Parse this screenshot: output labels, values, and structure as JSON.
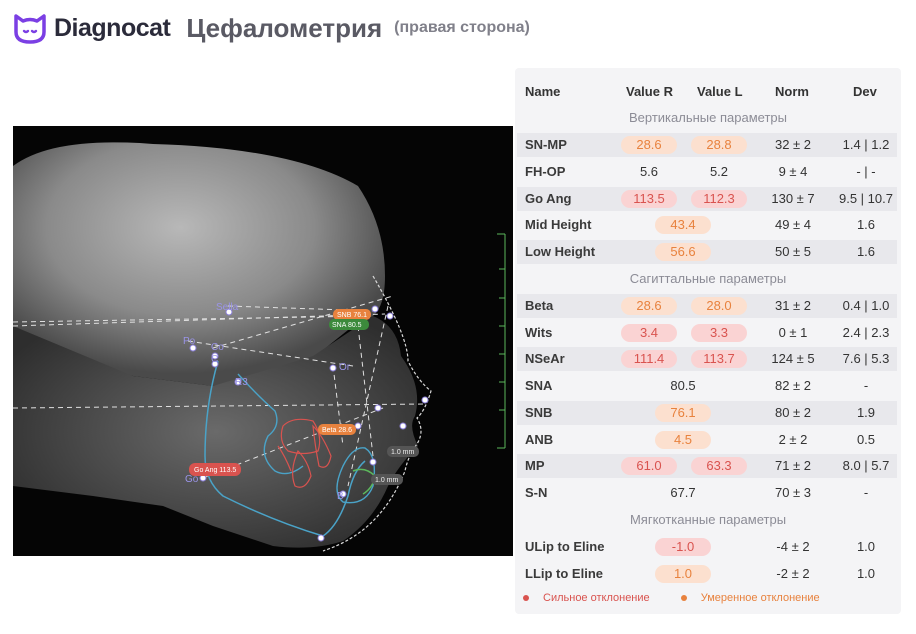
{
  "header": {
    "brand": "Diagnocat",
    "title": "Цефалометрия",
    "subtitle": "(правая сторона)"
  },
  "image_labels": {
    "sella": "Sella",
    "po": "Po",
    "co": "Co",
    "c": "C",
    "r3": "R3",
    "or": "Or",
    "go": "Go",
    "b": "B",
    "snb_tag": "SNB 76.1",
    "sna_tag": "SNA 80.5",
    "beta_tag": "Beta 28.6",
    "go_ang_tag": "Go Ang 113.5",
    "mm1": "1.0 mm",
    "mm2": "1.0 mm"
  },
  "table": {
    "headers": {
      "name": "Name",
      "value_r": "Value R",
      "value_l": "Value L",
      "norm": "Norm",
      "dev": "Dev"
    },
    "sections": {
      "vertical": "Вертикальные параметры",
      "sagittal": "Сагиттальные параметры",
      "soft": "Мягкотканные параметры"
    },
    "rows": [
      {
        "name": "SN-MP",
        "r": "28.6",
        "l": "28.8",
        "norm": "32 ± 2",
        "dev": "1.4 | 1.2"
      },
      {
        "name": "FH-OP",
        "r": "5.6",
        "l": "5.2",
        "norm": "9 ± 4",
        "dev": "- | -"
      },
      {
        "name": "Go Ang",
        "r": "113.5",
        "l": "112.3",
        "norm": "130 ± 7",
        "dev": "9.5 | 10.7"
      },
      {
        "name": "Mid Height",
        "v": "43.4",
        "norm": "49 ± 4",
        "dev": "1.6"
      },
      {
        "name": "Low Height",
        "v": "56.6",
        "norm": "50 ± 5",
        "dev": "1.6"
      },
      {
        "name": "Beta",
        "r": "28.6",
        "l": "28.0",
        "norm": "31 ± 2",
        "dev": "0.4 | 1.0"
      },
      {
        "name": "Wits",
        "r": "3.4",
        "l": "3.3",
        "norm": "0 ± 1",
        "dev": "2.4 | 2.3"
      },
      {
        "name": "NSeAr",
        "r": "111.4",
        "l": "113.7",
        "norm": "124 ± 5",
        "dev": "7.6 | 5.3"
      },
      {
        "name": "SNA",
        "v": "80.5",
        "norm": "82 ± 2",
        "dev": "-"
      },
      {
        "name": "SNB",
        "v": "76.1",
        "norm": "80 ± 2",
        "dev": "1.9"
      },
      {
        "name": "ANB",
        "v": "4.5",
        "norm": "2 ± 2",
        "dev": "0.5"
      },
      {
        "name": "MP",
        "r": "61.0",
        "l": "63.3",
        "norm": "71 ± 2",
        "dev": "8.0 | 5.7"
      },
      {
        "name": "S-N",
        "v": "67.7",
        "norm": "70 ± 3",
        "dev": "-"
      },
      {
        "name": "ULip to Eline",
        "v": "-1.0",
        "norm": "-4 ± 2",
        "dev": "1.0"
      },
      {
        "name": "LLip to Eline",
        "v": "1.0",
        "norm": "-2 ± 2",
        "dev": "1.0"
      }
    ]
  },
  "legend": {
    "strong": "Сильное отклонение",
    "moderate": "Умеренное отклонение"
  },
  "colors": {
    "strong": "#d9534f",
    "moderate": "#e8823e",
    "brand": "#7b3fe4",
    "tracing": "#4aa3c8"
  }
}
